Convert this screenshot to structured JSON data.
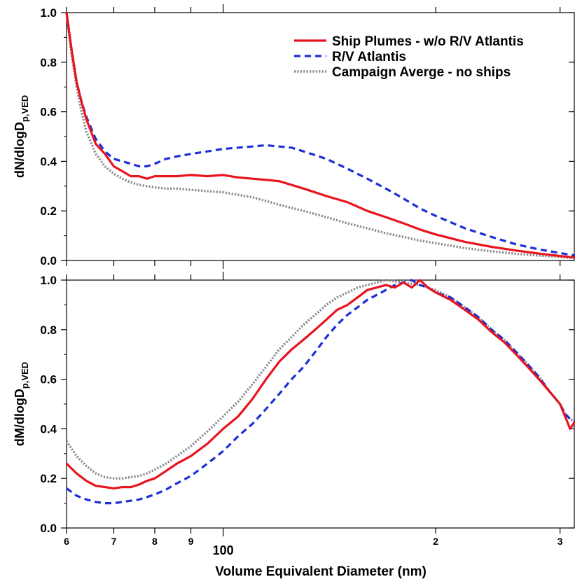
{
  "figure": {
    "xlabel": "Volume Equivalent Diameter (nm)",
    "x_ticks": [
      {
        "value": 60,
        "label": "6"
      },
      {
        "value": 70,
        "label": "7"
      },
      {
        "value": 80,
        "label": "8"
      },
      {
        "value": 90,
        "label": "9"
      },
      {
        "value": 100,
        "label": "100"
      },
      {
        "value": 200,
        "label": "2"
      },
      {
        "value": 300,
        "label": "3"
      }
    ],
    "legend": [
      {
        "label": "Ship Plumes - w/o R/V Atlantis",
        "color": "#e8141e",
        "style": "solid"
      },
      {
        "label": "R/V Atlantis",
        "color": "#1c2fd8",
        "style": "dashed"
      },
      {
        "label": "Campaign Averge - no ships",
        "color": "#8a8a8a",
        "style": "dotted"
      }
    ],
    "y_tick_labels": [
      "0.0",
      "0.2",
      "0.4",
      "0.6",
      "0.8",
      "1.0"
    ]
  },
  "chart_data": [
    {
      "type": "line",
      "panel": "top",
      "ylabel_main": "dN/dlogD",
      "ylabel_sub": "p,VED",
      "x_scale": "log",
      "xlim": [
        60,
        315
      ],
      "ylim": [
        0,
        1.0
      ],
      "legend_position": "top-right",
      "grid": false,
      "series": [
        {
          "name": "Ship Plumes - w/o R/V Atlantis",
          "x": [
            60,
            61,
            62,
            63,
            64,
            66,
            68,
            70,
            72,
            74,
            76,
            78,
            80,
            83,
            86,
            90,
            95,
            100,
            105,
            110,
            115,
            120,
            130,
            140,
            150,
            160,
            170,
            180,
            190,
            200,
            220,
            240,
            260,
            280,
            300,
            315
          ],
          "y": [
            1.0,
            0.85,
            0.72,
            0.64,
            0.57,
            0.47,
            0.43,
            0.38,
            0.36,
            0.34,
            0.34,
            0.33,
            0.34,
            0.34,
            0.34,
            0.345,
            0.34,
            0.345,
            0.335,
            0.33,
            0.325,
            0.32,
            0.29,
            0.26,
            0.235,
            0.2,
            0.175,
            0.15,
            0.125,
            0.105,
            0.075,
            0.055,
            0.04,
            0.028,
            0.018,
            0.012
          ]
        },
        {
          "name": "R/V Atlantis",
          "x": [
            60,
            61,
            62,
            63,
            64,
            66,
            68,
            70,
            72,
            74,
            76,
            78,
            80,
            83,
            86,
            90,
            95,
            100,
            105,
            110,
            115,
            120,
            125,
            130,
            140,
            150,
            160,
            170,
            180,
            190,
            200,
            220,
            240,
            260,
            280,
            300,
            315
          ],
          "y": [
            1.0,
            0.85,
            0.72,
            0.64,
            0.58,
            0.49,
            0.44,
            0.41,
            0.4,
            0.39,
            0.38,
            0.38,
            0.39,
            0.41,
            0.42,
            0.43,
            0.44,
            0.45,
            0.455,
            0.46,
            0.465,
            0.46,
            0.455,
            0.44,
            0.41,
            0.37,
            0.33,
            0.29,
            0.25,
            0.21,
            0.18,
            0.13,
            0.095,
            0.065,
            0.045,
            0.03,
            0.02
          ]
        },
        {
          "name": "Campaign Averge - no ships",
          "x": [
            60,
            61,
            62,
            63,
            64,
            66,
            68,
            70,
            72,
            74,
            76,
            78,
            80,
            83,
            86,
            90,
            95,
            100,
            105,
            110,
            115,
            120,
            130,
            140,
            150,
            160,
            170,
            180,
            190,
            200,
            220,
            240,
            260,
            280,
            300,
            315
          ],
          "y": [
            1.0,
            0.83,
            0.7,
            0.6,
            0.52,
            0.43,
            0.38,
            0.35,
            0.33,
            0.315,
            0.305,
            0.3,
            0.295,
            0.29,
            0.29,
            0.285,
            0.28,
            0.275,
            0.265,
            0.255,
            0.24,
            0.225,
            0.2,
            0.175,
            0.15,
            0.13,
            0.11,
            0.095,
            0.08,
            0.07,
            0.05,
            0.037,
            0.027,
            0.02,
            0.014,
            0.01
          ]
        }
      ]
    },
    {
      "type": "line",
      "panel": "bottom",
      "ylabel_main": "dM/dlogD",
      "ylabel_sub": "p,VED",
      "x_scale": "log",
      "xlim": [
        60,
        315
      ],
      "ylim": [
        0,
        1.0
      ],
      "grid": false,
      "series": [
        {
          "name": "Ship Plumes - w/o R/V Atlantis",
          "x": [
            60,
            62,
            64,
            66,
            68,
            70,
            72,
            74,
            76,
            78,
            80,
            83,
            86,
            90,
            95,
            100,
            105,
            110,
            115,
            120,
            125,
            130,
            135,
            140,
            145,
            150,
            155,
            160,
            165,
            170,
            175,
            180,
            185,
            190,
            195,
            200,
            210,
            220,
            230,
            240,
            250,
            260,
            270,
            280,
            290,
            300,
            305,
            310,
            315
          ],
          "y": [
            0.26,
            0.22,
            0.19,
            0.17,
            0.165,
            0.16,
            0.165,
            0.165,
            0.175,
            0.19,
            0.2,
            0.23,
            0.26,
            0.29,
            0.34,
            0.4,
            0.45,
            0.52,
            0.6,
            0.67,
            0.72,
            0.76,
            0.8,
            0.84,
            0.88,
            0.9,
            0.93,
            0.96,
            0.97,
            0.98,
            0.97,
            0.99,
            0.97,
            1.0,
            0.97,
            0.95,
            0.92,
            0.88,
            0.84,
            0.79,
            0.75,
            0.7,
            0.65,
            0.6,
            0.55,
            0.5,
            0.45,
            0.4,
            0.43
          ]
        },
        {
          "name": "R/V Atlantis",
          "x": [
            60,
            62,
            64,
            66,
            68,
            70,
            72,
            74,
            76,
            78,
            80,
            83,
            86,
            90,
            95,
            100,
            105,
            110,
            115,
            120,
            125,
            130,
            135,
            140,
            145,
            150,
            155,
            160,
            165,
            170,
            175,
            180,
            185,
            190,
            195,
            200,
            210,
            220,
            230,
            240,
            250,
            260,
            270,
            280,
            290,
            300,
            305,
            310,
            315
          ],
          "y": [
            0.16,
            0.13,
            0.115,
            0.105,
            0.1,
            0.1,
            0.105,
            0.11,
            0.115,
            0.125,
            0.135,
            0.155,
            0.18,
            0.21,
            0.26,
            0.31,
            0.37,
            0.42,
            0.48,
            0.54,
            0.6,
            0.65,
            0.71,
            0.77,
            0.82,
            0.86,
            0.89,
            0.92,
            0.94,
            0.96,
            0.98,
            0.99,
            1.0,
            0.98,
            0.97,
            0.95,
            0.93,
            0.89,
            0.85,
            0.8,
            0.76,
            0.71,
            0.66,
            0.61,
            0.55,
            0.5,
            0.46,
            0.44,
            0.43
          ]
        },
        {
          "name": "Campaign Averge - no ships",
          "x": [
            60,
            62,
            64,
            66,
            68,
            70,
            72,
            74,
            76,
            78,
            80,
            83,
            86,
            90,
            95,
            100,
            105,
            110,
            115,
            120,
            125,
            130,
            135,
            140,
            145,
            150,
            155,
            160,
            165,
            170,
            175,
            180,
            185,
            190,
            195,
            200,
            210,
            220,
            230,
            240,
            250,
            260,
            270,
            280,
            290,
            300,
            305,
            310,
            315
          ],
          "y": [
            0.35,
            0.29,
            0.25,
            0.22,
            0.205,
            0.2,
            0.2,
            0.205,
            0.21,
            0.22,
            0.235,
            0.26,
            0.29,
            0.33,
            0.39,
            0.45,
            0.51,
            0.58,
            0.65,
            0.72,
            0.77,
            0.82,
            0.86,
            0.9,
            0.93,
            0.95,
            0.97,
            0.98,
            0.99,
            1.0,
            0.995,
            0.99,
            0.985,
            0.98,
            0.97,
            0.96,
            0.93,
            0.89,
            0.85,
            0.8,
            0.76,
            0.71,
            0.66,
            0.61,
            0.55,
            0.5,
            0.46,
            0.44,
            0.43
          ]
        }
      ]
    }
  ]
}
